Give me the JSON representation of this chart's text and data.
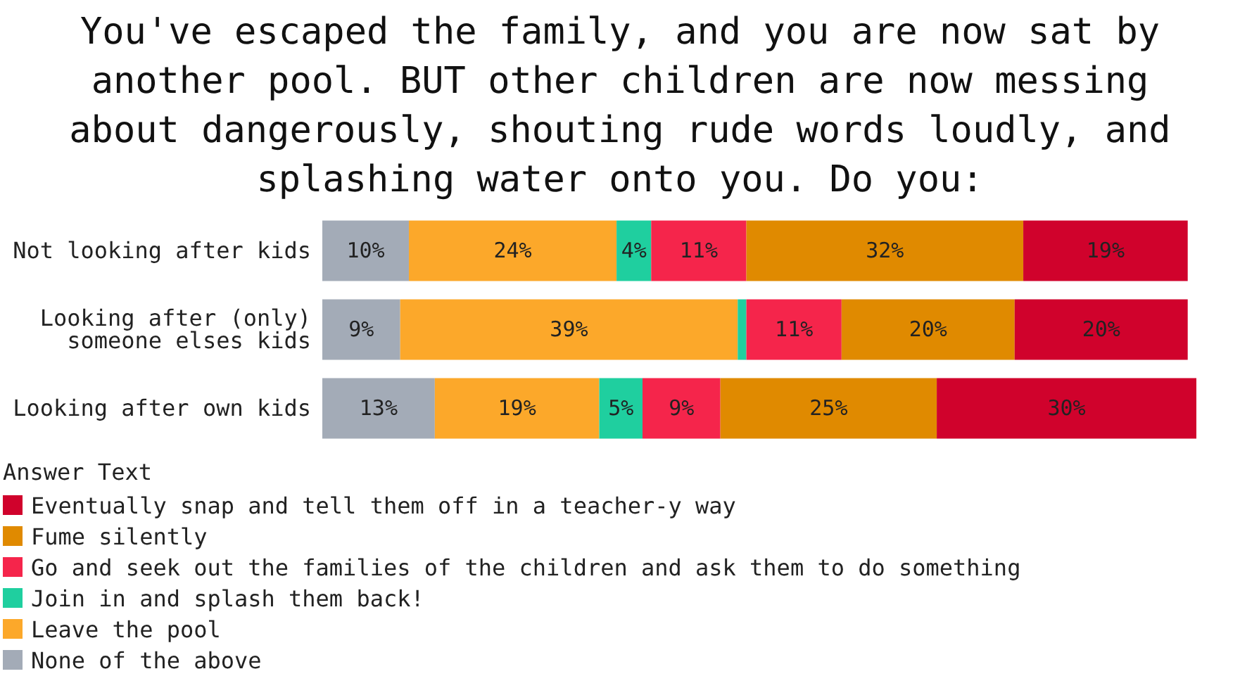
{
  "chart_data": {
    "type": "bar",
    "orientation": "horizontal",
    "stacked": true,
    "title": "You've escaped the family, and you are now sat by another pool. BUT other children are now messing about dangerously, shouting rude words loudly, and splashing water onto you. Do you:",
    "legend_title": "Answer Text",
    "legend": "bottom",
    "tick_labels": "y",
    "xlim": [
      0,
      101
    ],
    "categories": [
      "Not looking after kids",
      "Looking after (only) someone elses kids",
      "Looking after own kids"
    ],
    "series": [
      {
        "name": "None of the above",
        "color": "#a3abb7",
        "values": [
          10,
          9,
          13
        ],
        "value_labels": [
          "10%",
          "9%",
          "13%"
        ]
      },
      {
        "name": "Leave the pool",
        "color": "#fca82a",
        "values": [
          24,
          39,
          19
        ],
        "value_labels": [
          "24%",
          "39%",
          "19%"
        ]
      },
      {
        "name": "Join in and splash them back!",
        "color": "#1fcf9f",
        "values": [
          4,
          1,
          5
        ],
        "value_labels": [
          "4%",
          null,
          "5%"
        ]
      },
      {
        "name": "Go and seek out the families of the children and ask them to do something",
        "color": "#f5254b",
        "values": [
          11,
          11,
          9
        ],
        "value_labels": [
          "11%",
          "11%",
          "9%"
        ]
      },
      {
        "name": "Fume silently",
        "color": "#e08a00",
        "values": [
          32,
          20,
          25
        ],
        "value_labels": [
          "32%",
          "20%",
          "25%"
        ]
      },
      {
        "name": "Eventually snap and tell them off in a teacher-y way",
        "color": "#d0022c",
        "values": [
          19,
          20,
          30
        ],
        "value_labels": [
          "19%",
          "20%",
          "30%"
        ]
      }
    ]
  }
}
